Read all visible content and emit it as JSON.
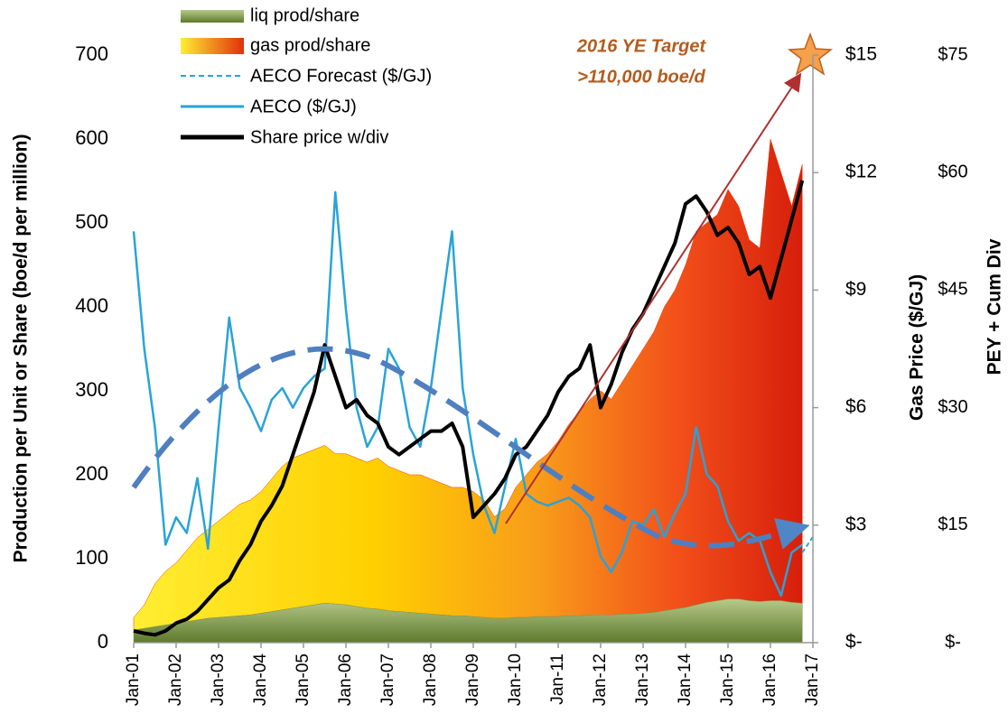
{
  "chart_data": {
    "type": "area-line",
    "y_label": "Production per Unit or Share (boe/d per million)",
    "y2_label": "Gas Price ($/GJ)",
    "y3_label": "PEY + Cum Div",
    "annotations": [
      "2016 YE Target",
      ">110,000 boe/d"
    ],
    "xlim": [
      2001,
      2017
    ],
    "xticks": [
      {
        "value": 2001,
        "label": "Jan-01"
      },
      {
        "value": 2002,
        "label": "Jan-02"
      },
      {
        "value": 2003,
        "label": "Jan-03"
      },
      {
        "value": 2004,
        "label": "Jan-04"
      },
      {
        "value": 2005,
        "label": "Jan-05"
      },
      {
        "value": 2006,
        "label": "Jan-06"
      },
      {
        "value": 2007,
        "label": "Jan-07"
      },
      {
        "value": 2008,
        "label": "Jan-08"
      },
      {
        "value": 2009,
        "label": "Jan-09"
      },
      {
        "value": 2010,
        "label": "Jan-10"
      },
      {
        "value": 2011,
        "label": "Jan-11"
      },
      {
        "value": 2012,
        "label": "Jan-12"
      },
      {
        "value": 2013,
        "label": "Jan-13"
      },
      {
        "value": 2014,
        "label": "Jan-14"
      },
      {
        "value": 2015,
        "label": "Jan-15"
      },
      {
        "value": 2016,
        "label": "Jan-16"
      },
      {
        "value": 2017,
        "label": "Jan-17"
      }
    ],
    "ylim": [
      0,
      700
    ],
    "yticks": [
      0,
      100,
      200,
      300,
      400,
      500,
      600,
      700
    ],
    "y2lim": [
      0,
      15
    ],
    "y2ticks": [
      {
        "value": 0,
        "label": "$-"
      },
      {
        "value": 3,
        "label": "$3"
      },
      {
        "value": 6,
        "label": "$6"
      },
      {
        "value": 9,
        "label": "$9"
      },
      {
        "value": 12,
        "label": "$12"
      },
      {
        "value": 15,
        "label": "$15"
      }
    ],
    "y3lim": [
      0,
      75
    ],
    "y3ticks": [
      {
        "value": 0,
        "label": "$-"
      },
      {
        "value": 15,
        "label": "$15"
      },
      {
        "value": 30,
        "label": "$30"
      },
      {
        "value": 45,
        "label": "$45"
      },
      {
        "value": 60,
        "label": "$60"
      },
      {
        "value": 75,
        "label": "$75"
      }
    ],
    "x": [
      2001,
      2001.25,
      2001.5,
      2001.75,
      2002,
      2002.25,
      2002.5,
      2002.75,
      2003,
      2003.25,
      2003.5,
      2003.75,
      2004,
      2004.25,
      2004.5,
      2004.75,
      2005,
      2005.25,
      2005.5,
      2005.75,
      2006,
      2006.25,
      2006.5,
      2006.75,
      2007,
      2007.25,
      2007.5,
      2007.75,
      2008,
      2008.25,
      2008.5,
      2008.75,
      2009,
      2009.25,
      2009.5,
      2009.75,
      2010,
      2010.25,
      2010.5,
      2010.75,
      2011,
      2011.25,
      2011.5,
      2011.75,
      2012,
      2012.25,
      2012.5,
      2012.75,
      2013,
      2013.25,
      2013.5,
      2013.75,
      2014,
      2014.25,
      2014.5,
      2014.75,
      2015,
      2015.25,
      2015.5,
      2015.75,
      2016,
      2016.25,
      2016.5,
      2016.75
    ],
    "series": [
      {
        "name": "liq prod/share",
        "kind": "area",
        "color": "#7f9a4a",
        "values": [
          15,
          17,
          19,
          21,
          23,
          25,
          27,
          29,
          30,
          31,
          32,
          33,
          35,
          37,
          39,
          41,
          43,
          45,
          47,
          46,
          45,
          43,
          41,
          40,
          38,
          37,
          36,
          35,
          34,
          33,
          32,
          32,
          31,
          30,
          29,
          29,
          30,
          30,
          31,
          31,
          31,
          32,
          32,
          33,
          33,
          33,
          34,
          34,
          35,
          36,
          38,
          40,
          42,
          45,
          48,
          50,
          52,
          52,
          50,
          49,
          50,
          50,
          48,
          47
        ]
      },
      {
        "name": "gas prod/share",
        "kind": "area",
        "stack": true,
        "color": "#f03a0c",
        "values": [
          15,
          28,
          51,
          64,
          72,
          85,
          98,
          106,
          115,
          124,
          133,
          137,
          145,
          158,
          171,
          179,
          182,
          185,
          188,
          179,
          180,
          177,
          174,
          180,
          172,
          168,
          164,
          165,
          161,
          157,
          153,
          153,
          149,
          140,
          121,
          131,
          155,
          170,
          184,
          194,
          209,
          228,
          243,
          257,
          267,
          257,
          276,
          296,
          315,
          334,
          362,
          380,
          408,
          445,
          452,
          460,
          488,
          468,
          430,
          421,
          550,
          510,
          472,
          523
        ]
      },
      {
        "name": "AECO ($/GJ)",
        "kind": "line",
        "axis": "y2",
        "color": "#29a3d8",
        "values": [
          10.5,
          7.5,
          5.5,
          2.5,
          3.2,
          2.8,
          4.2,
          2.4,
          5.5,
          8.3,
          6.5,
          6.0,
          5.4,
          6.2,
          6.5,
          6.0,
          6.5,
          6.8,
          7.0,
          11.5,
          8.5,
          6.0,
          5.0,
          5.5,
          7.5,
          7.0,
          5.5,
          5.0,
          6.5,
          8.5,
          10.5,
          6.5,
          4.8,
          3.5,
          2.8,
          4.0,
          5.2,
          3.8,
          3.6,
          3.5,
          3.6,
          3.7,
          3.5,
          3.2,
          2.2,
          1.8,
          2.3,
          3.1,
          3.0,
          3.4,
          2.7,
          3.3,
          3.8,
          5.5,
          4.3,
          4.0,
          3.1,
          2.6,
          2.8,
          2.6,
          1.8,
          1.2,
          2.3,
          2.5
        ]
      },
      {
        "name": "Share price w/div",
        "kind": "line",
        "axis": "y3",
        "color": "#000000",
        "values": [
          1.5,
          1.2,
          1.0,
          1.5,
          2.5,
          3.0,
          4.0,
          5.5,
          7.0,
          8.0,
          10.5,
          12.5,
          15.5,
          17.5,
          20,
          24,
          28,
          32,
          38,
          34,
          30,
          31,
          29,
          28,
          25,
          24,
          25,
          26,
          27,
          27,
          28,
          25,
          16,
          17.5,
          19,
          21,
          24,
          25,
          27,
          29,
          32,
          34,
          35,
          38,
          30,
          33,
          37,
          40,
          42,
          45,
          48,
          51,
          56,
          57,
          55,
          52,
          53,
          51,
          47,
          48,
          44,
          49,
          54,
          59
        ]
      }
    ],
    "forecast": {
      "name": "AECO Forecast ($/GJ)",
      "axis": "y2",
      "color": "#29a3d8",
      "x": [
        2016.75,
        2017
      ],
      "values": [
        2.3,
        2.7
      ]
    }
  }
}
